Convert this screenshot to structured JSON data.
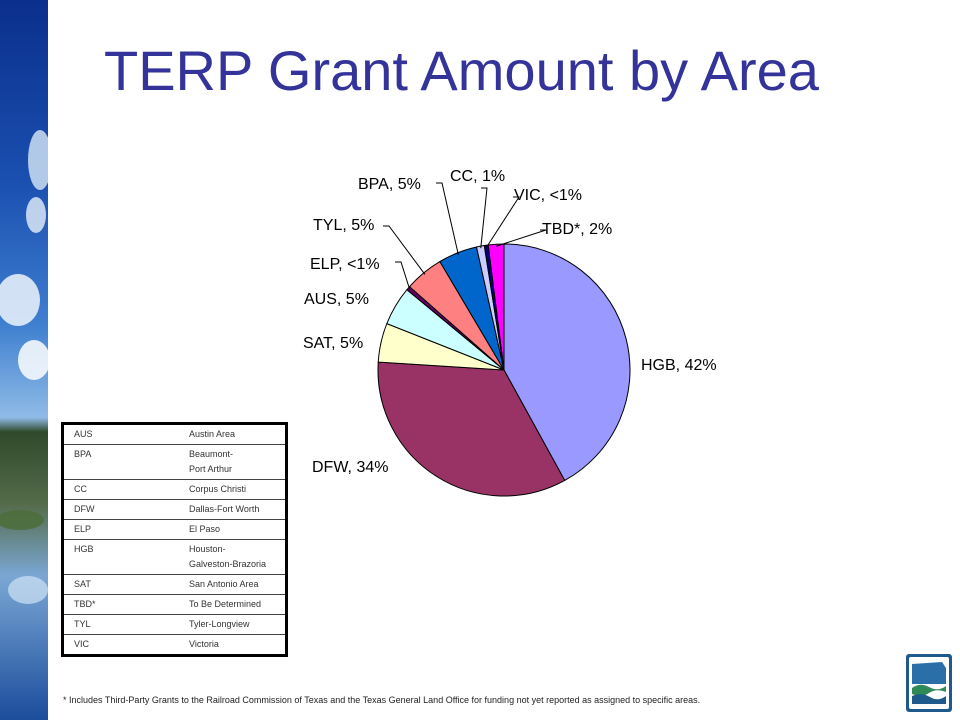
{
  "slide": {
    "title": "TERP Grant Amount by Area",
    "footnote": "* Includes Third-Party Grants to the Railroad Commission of Texas and the Texas General Land Office for funding not yet reported as assigned to specific areas."
  },
  "chart_data": {
    "type": "pie",
    "title": "",
    "slices": [
      {
        "label": "HGB",
        "value": 42,
        "display": "HGB, 42%",
        "color": "#9999FF"
      },
      {
        "label": "DFW",
        "value": 34,
        "display": "DFW, 34%",
        "color": "#993366"
      },
      {
        "label": "SAT",
        "value": 5,
        "display": "SAT, 5%",
        "color": "#FFFFCC"
      },
      {
        "label": "AUS",
        "value": 5,
        "display": "AUS, 5%",
        "color": "#CCFFFF"
      },
      {
        "label": "ELP",
        "value": 0.5,
        "display": "ELP, <1%",
        "color": "#660066"
      },
      {
        "label": "TYL",
        "value": 5,
        "display": "TYL, 5%",
        "color": "#FF8080"
      },
      {
        "label": "BPA",
        "value": 5,
        "display": "BPA, 5%",
        "color": "#0066CC"
      },
      {
        "label": "CC",
        "value": 1,
        "display": "CC, 1%",
        "color": "#CCCCFF"
      },
      {
        "label": "VIC",
        "value": 0.5,
        "display": "VIC, <1%",
        "color": "#000080"
      },
      {
        "label": "TBD*",
        "value": 2,
        "display": "TBD*, 2%",
        "color": "#FF00FF"
      }
    ],
    "legend": "none"
  },
  "legend_table": [
    {
      "code": "AUS",
      "name": "Austin Area"
    },
    {
      "code": "BPA",
      "name": "Beaumont-\nPort Arthur"
    },
    {
      "code": "CC",
      "name": "Corpus Christi"
    },
    {
      "code": "DFW",
      "name": "Dallas-Fort Worth"
    },
    {
      "code": "ELP",
      "name": "El Paso"
    },
    {
      "code": "HGB",
      "name": "Houston-\nGalveston-Brazoria"
    },
    {
      "code": "SAT",
      "name": "San Antonio Area"
    },
    {
      "code": "TBD*",
      "name": "To Be Determined"
    },
    {
      "code": "TYL",
      "name": "Tyler-Longview"
    },
    {
      "code": "VIC",
      "name": "Victoria"
    }
  ]
}
